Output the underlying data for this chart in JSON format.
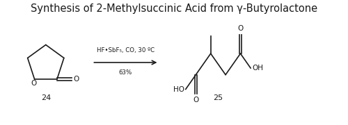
{
  "title": "Synthesis of 2-Methylsuccinic Acid from γ-Butyrolactone",
  "title_fontsize": 10.5,
  "reagent_line1": "HF•SbF₅, CO, 30 ºC",
  "reagent_line2": "63%",
  "compound24_label": "24",
  "compound25_label": "25",
  "bg_color": "#ffffff",
  "line_color": "#1a1a1a",
  "text_color": "#1a1a1a",
  "fig_width": 5.0,
  "fig_height": 1.8,
  "dpi": 100
}
